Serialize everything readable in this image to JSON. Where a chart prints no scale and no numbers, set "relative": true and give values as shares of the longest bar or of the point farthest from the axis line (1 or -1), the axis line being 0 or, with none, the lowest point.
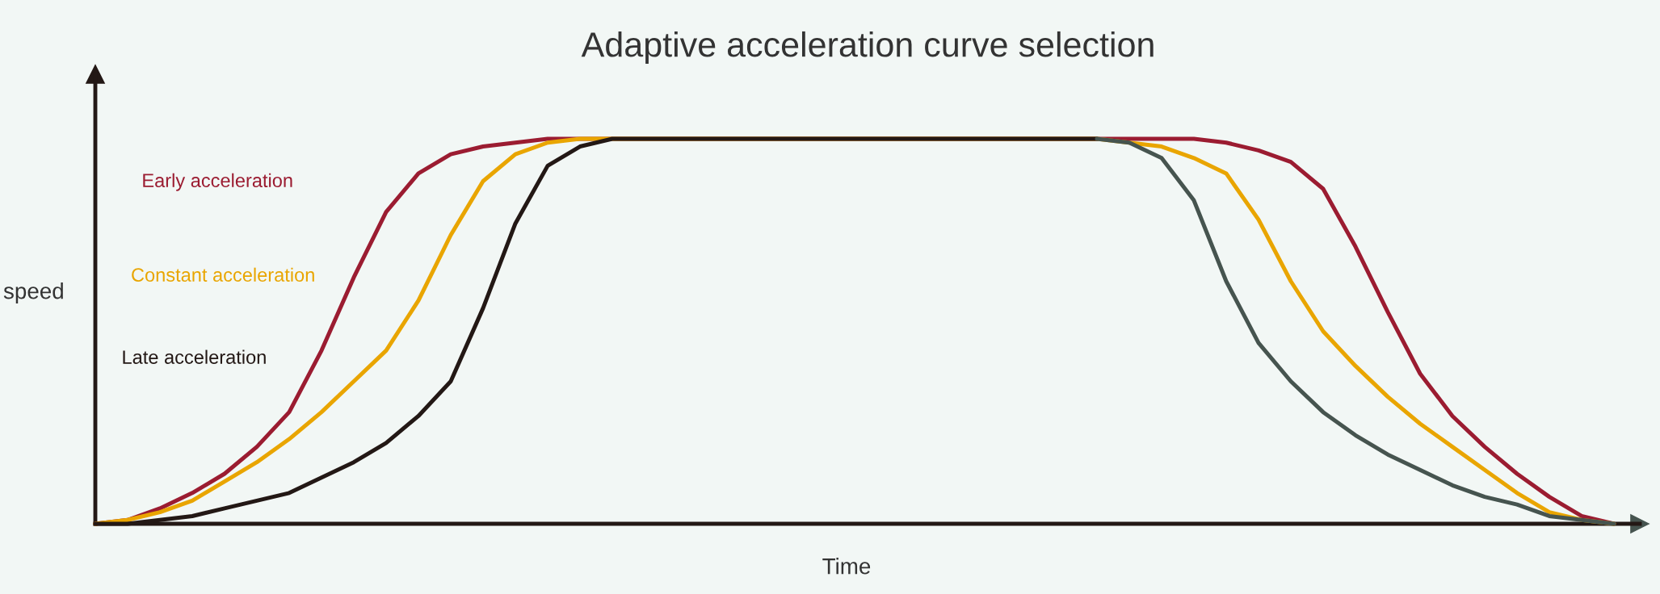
{
  "chart_data": {
    "type": "line",
    "title": "Adaptive acceleration curve selection",
    "xlabel": "Time",
    "ylabel": "speed",
    "relative": true,
    "categories": [
      null,
      null,
      null,
      null,
      null,
      null,
      null,
      null,
      null,
      null,
      null,
      null,
      null,
      null,
      null,
      null,
      null,
      null,
      null,
      null,
      null,
      null,
      null,
      null,
      null,
      null,
      null,
      null,
      null,
      null,
      null,
      null,
      null,
      null,
      null,
      null,
      null,
      null,
      null,
      null,
      null,
      null,
      null,
      null,
      null,
      null,
      null,
      null
    ],
    "series": [
      {
        "name": "Early acceleration",
        "color": "#9b1c31",
        "values": [
          0,
          0.01,
          0.04,
          0.08,
          0.13,
          0.2,
          0.29,
          0.45,
          0.64,
          0.81,
          0.91,
          0.96,
          0.98,
          0.99,
          1,
          1,
          1,
          1,
          1,
          1,
          1,
          1,
          1,
          1,
          1,
          1,
          1,
          1,
          1,
          1,
          1,
          1,
          1,
          1,
          1,
          0.99,
          0.97,
          0.94,
          0.87,
          0.72,
          0.55,
          0.39,
          0.28,
          0.2,
          0.13,
          0.07,
          0.02,
          0
        ]
      },
      {
        "name": "Constant acceleration",
        "color": "#e9a500",
        "values": [
          0,
          0.01,
          0.03,
          0.06,
          0.11,
          0.16,
          0.22,
          0.29,
          0.37,
          0.45,
          0.58,
          0.75,
          0.89,
          0.96,
          0.99,
          1,
          1,
          1,
          1,
          1,
          1,
          1,
          1,
          1,
          1,
          1,
          1,
          1,
          1,
          1,
          1,
          1,
          0.99,
          0.98,
          0.95,
          0.91,
          0.79,
          0.63,
          0.5,
          0.41,
          0.33,
          0.26,
          0.2,
          0.14,
          0.08,
          0.03,
          0.01,
          0
        ]
      },
      {
        "name": "Late acceleration",
        "color": "#231815",
        "values": [
          0,
          0,
          0.01,
          0.02,
          0.04,
          0.06,
          0.08,
          0.12,
          0.16,
          0.21,
          0.28,
          0.37,
          0.56,
          0.78,
          0.93,
          0.98,
          1,
          1,
          1,
          1,
          1,
          1,
          1,
          1,
          1,
          1,
          1,
          1,
          1,
          1,
          1,
          1,
          null,
          null,
          null,
          null,
          null,
          null,
          null,
          null,
          null,
          null,
          null,
          null,
          null,
          null,
          null,
          null
        ]
      },
      {
        "color": "#46544f",
        "values": [
          null,
          null,
          null,
          null,
          null,
          null,
          null,
          null,
          null,
          null,
          null,
          null,
          null,
          null,
          null,
          null,
          null,
          null,
          null,
          null,
          null,
          null,
          null,
          null,
          null,
          null,
          null,
          null,
          null,
          null,
          null,
          1,
          0.99,
          0.95,
          0.84,
          0.63,
          0.47,
          0.37,
          0.29,
          0.23,
          0.18,
          0.14,
          0.1,
          0.07,
          0.05,
          0.02,
          0.01,
          0
        ]
      }
    ]
  }
}
